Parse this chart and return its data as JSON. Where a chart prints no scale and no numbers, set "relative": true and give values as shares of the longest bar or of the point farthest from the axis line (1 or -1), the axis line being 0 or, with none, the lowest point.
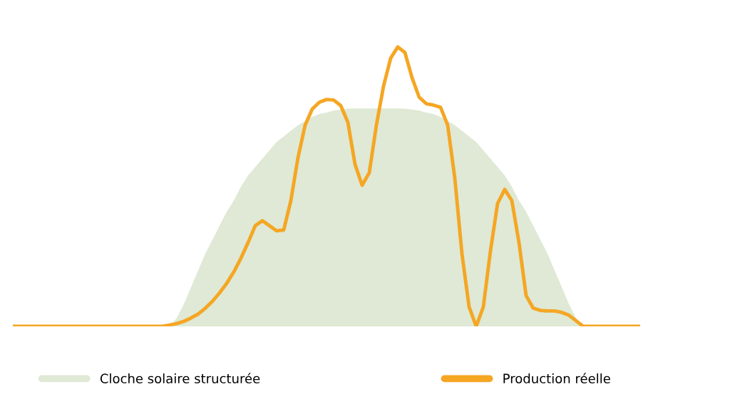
{
  "chart_data": {
    "type": "line",
    "relative": true,
    "legend": "bottom",
    "categories": [
      null,
      null,
      null,
      null,
      null,
      null,
      null,
      null,
      null,
      null,
      null,
      null,
      null,
      null,
      null,
      null,
      null,
      null,
      null,
      null,
      null,
      null,
      null,
      null,
      null,
      null,
      null,
      null,
      null,
      null,
      null,
      null,
      null,
      null,
      null,
      null,
      null,
      null,
      null,
      null,
      null,
      null,
      null,
      null,
      null,
      null,
      null,
      null,
      null,
      null,
      null,
      null,
      null,
      null,
      null,
      null,
      null,
      null,
      null,
      null,
      null,
      null,
      null,
      null,
      null,
      null,
      null,
      null,
      null,
      null,
      null,
      null,
      null,
      null,
      null,
      null,
      null,
      null,
      null,
      null,
      null,
      null,
      null,
      null,
      null,
      null,
      null,
      null,
      null
    ],
    "series": [
      {
        "name": "Cloche solaire structurée",
        "type": "area",
        "color": "#dfe9d5",
        "values": [
          0,
          0,
          0,
          0,
          0,
          0,
          0,
          0,
          0,
          0,
          0,
          0,
          0,
          0,
          0,
          0,
          0,
          0,
          0,
          0,
          0,
          0,
          0,
          0.03,
          0.08,
          0.14,
          0.2,
          0.26,
          0.31,
          0.36,
          0.41,
          0.45,
          0.5,
          0.54,
          0.57,
          0.6,
          0.63,
          0.66,
          0.68,
          0.7,
          0.72,
          0.735,
          0.75,
          0.76,
          0.765,
          0.772,
          0.776,
          0.779,
          0.78,
          0.78,
          0.78,
          0.78,
          0.78,
          0.78,
          0.78,
          0.779,
          0.776,
          0.772,
          0.765,
          0.76,
          0.75,
          0.735,
          0.72,
          0.7,
          0.68,
          0.66,
          0.63,
          0.6,
          0.57,
          0.54,
          0.5,
          0.45,
          0.41,
          0.36,
          0.31,
          0.26,
          0.2,
          0.14,
          0.08,
          0.03,
          0,
          0,
          0,
          0,
          0,
          0,
          0,
          0,
          0
        ]
      },
      {
        "name": "Production réelle",
        "color": "#f5a623",
        "values": [
          0,
          0,
          0,
          0,
          0,
          0,
          0,
          0,
          0,
          0,
          0,
          0,
          0,
          0,
          0,
          0,
          0,
          0,
          0,
          0,
          0,
          0,
          0.005,
          0.01,
          0.018,
          0.03,
          0.044,
          0.065,
          0.09,
          0.12,
          0.154,
          0.195,
          0.244,
          0.3,
          0.36,
          0.378,
          0.36,
          0.342,
          0.345,
          0.45,
          0.604,
          0.72,
          0.778,
          0.802,
          0.812,
          0.81,
          0.79,
          0.73,
          0.58,
          0.505,
          0.55,
          0.72,
          0.86,
          0.96,
          1.0,
          0.98,
          0.89,
          0.82,
          0.797,
          0.792,
          0.784,
          0.72,
          0.53,
          0.26,
          0.07,
          0.0,
          0.07,
          0.27,
          0.44,
          0.49,
          0.45,
          0.3,
          0.11,
          0.065,
          0.057,
          0.055,
          0.055,
          0.05,
          0.04,
          0.02,
          0,
          0,
          0,
          0,
          0,
          0,
          0,
          0,
          0
        ]
      }
    ]
  }
}
